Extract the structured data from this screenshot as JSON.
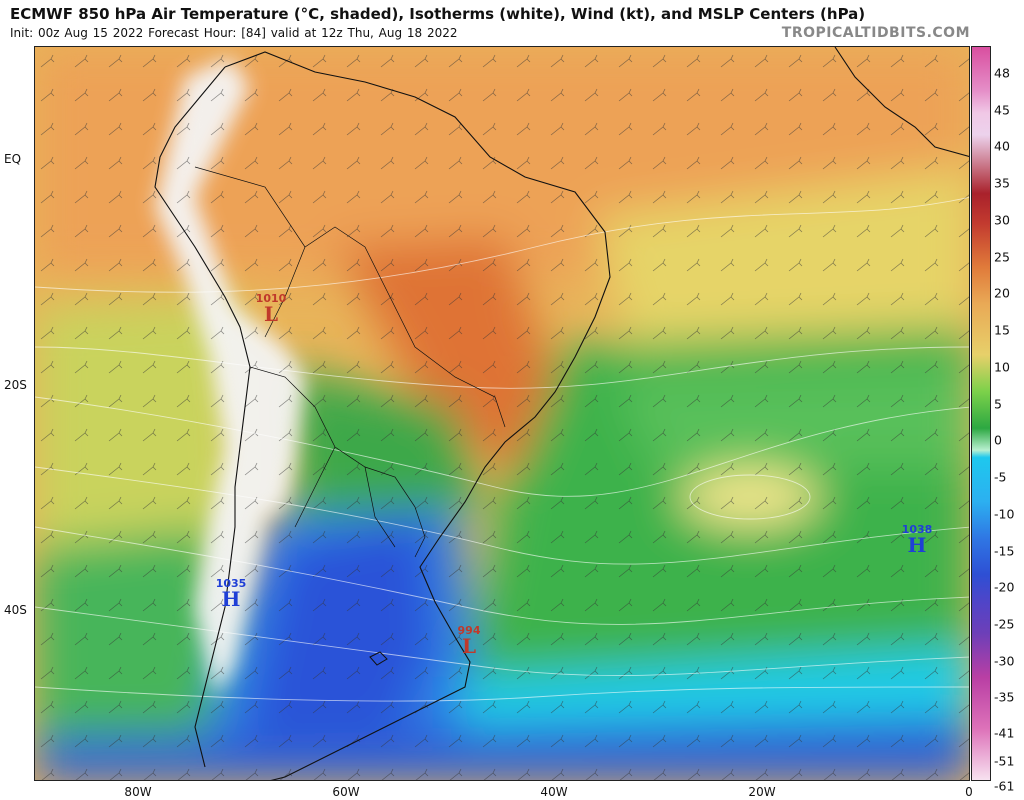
{
  "header": {
    "title": "ECMWF 850 hPa Air Temperature (°C, shaded), Isotherms (white), Wind (kt), and MSLP Centers (hPa)",
    "subtitle": "Init: 00z Aug 15 2022   Forecast Hour: [84]   valid at 12z Thu, Aug 18 2022",
    "brand": "TROPICALTIDBITS.COM"
  },
  "map": {
    "lat_labels": [
      "EQ",
      "20S",
      "40S"
    ],
    "lon_labels": [
      "80W",
      "60W",
      "40W",
      "20W",
      "0"
    ],
    "pressure_centers": [
      {
        "value": "1010",
        "type": "L",
        "color": "#c0392b"
      },
      {
        "value": "1035",
        "type": "H",
        "color": "#1f3fd6"
      },
      {
        "value": "994",
        "type": "L",
        "color": "#c0392b"
      },
      {
        "value": "1038",
        "type": "H",
        "color": "#1f3fd6"
      }
    ]
  },
  "colorbar": {
    "ticks": [
      "48",
      "45",
      "40",
      "35",
      "30",
      "25",
      "20",
      "15",
      "10",
      "5",
      "0",
      "-5",
      "-10",
      "-15",
      "-20",
      "-25",
      "-30",
      "-35",
      "-41",
      "-51",
      "-61"
    ]
  }
}
